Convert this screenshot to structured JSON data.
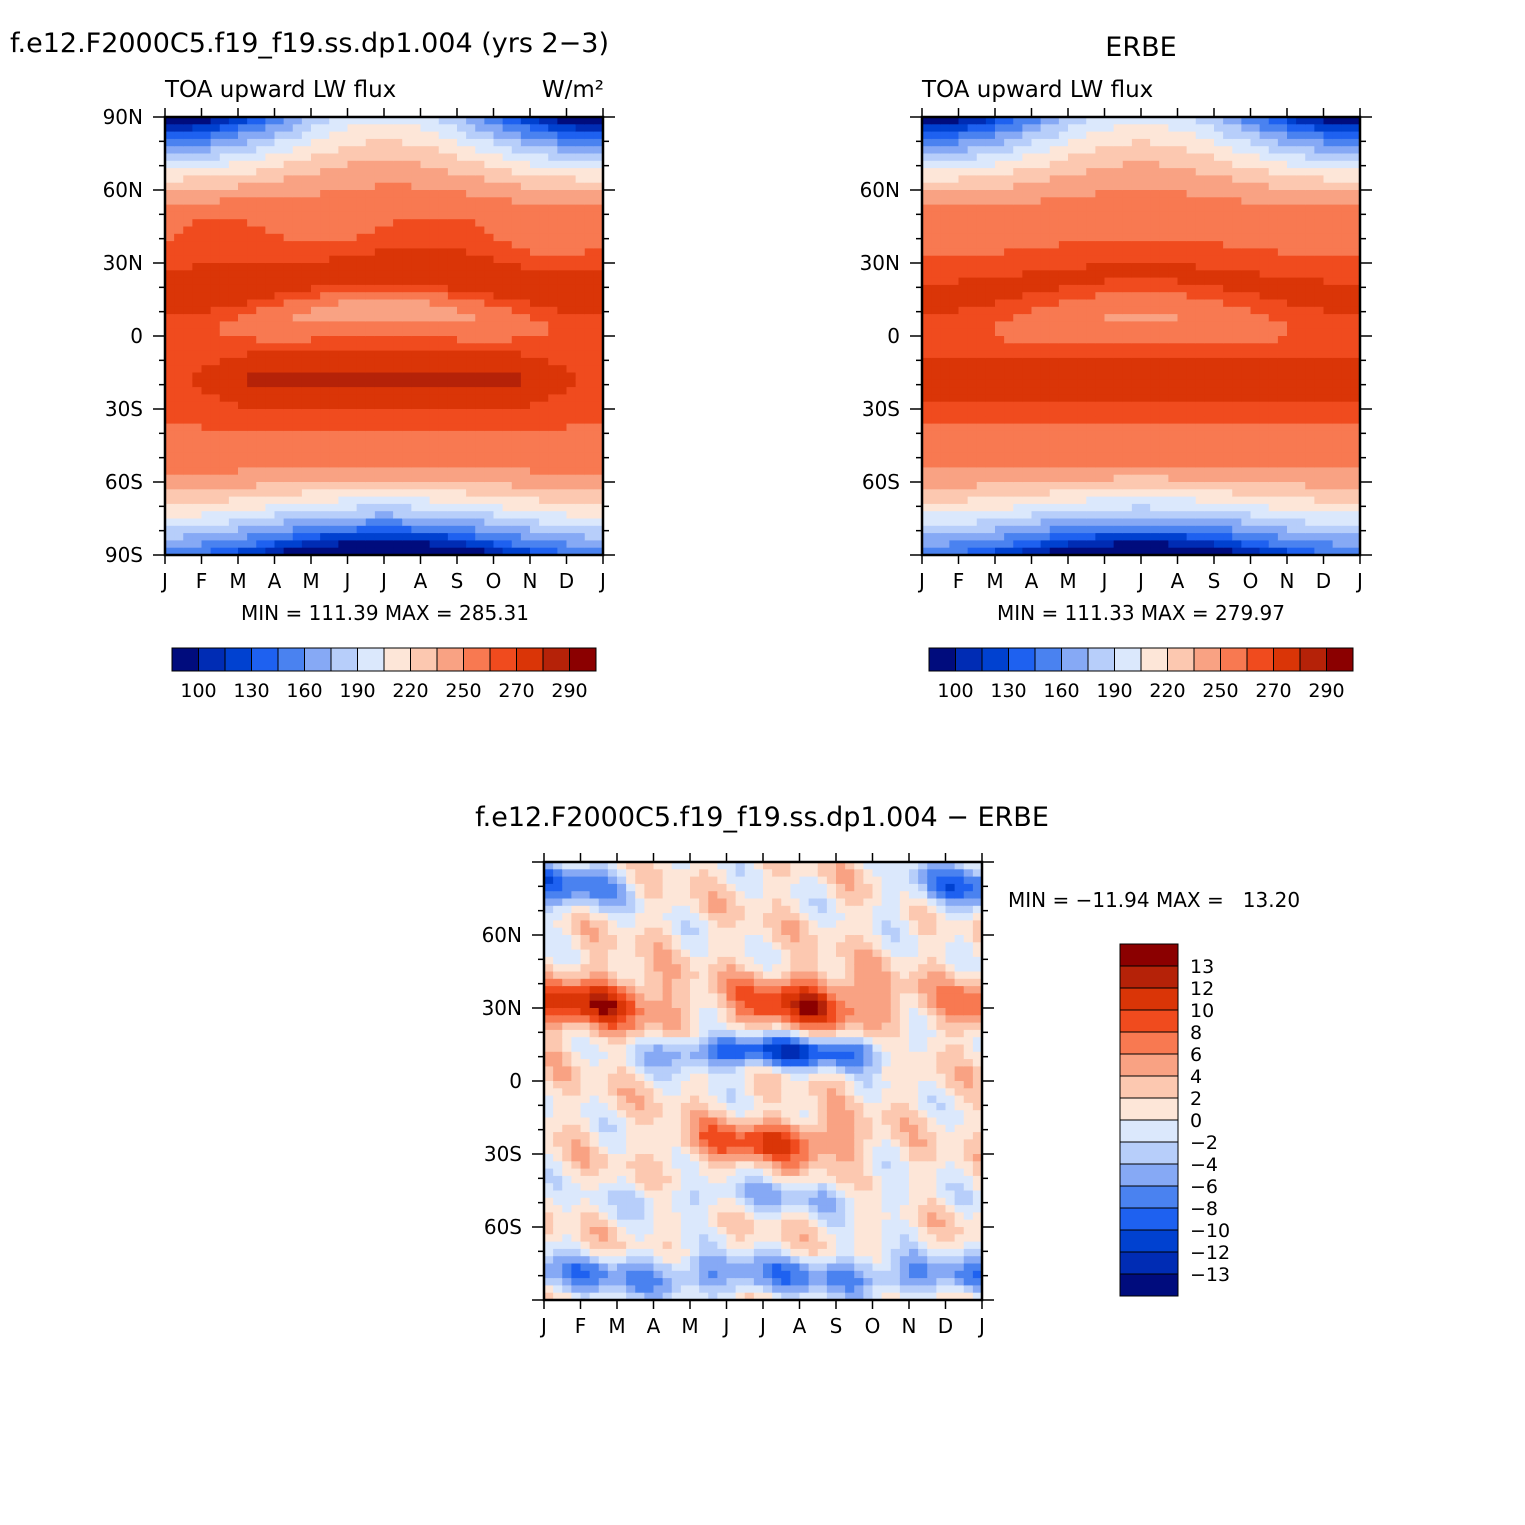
{
  "chart_data": [
    {
      "type": "heatmap",
      "panel": "model",
      "title": "f.e12.F2000C5.f19_f19.ss.dp1.004 (yrs 2−3)",
      "left_string": "TOA upward LW flux",
      "right_string": "W/m²",
      "xlabels": [
        "J",
        "F",
        "M",
        "A",
        "M",
        "J",
        "J",
        "A",
        "S",
        "O",
        "N",
        "D",
        "J"
      ],
      "ylabels": [
        "90N",
        "60N",
        "30N",
        "0",
        "30S",
        "60S",
        "90S"
      ],
      "ylim": [
        -90,
        90
      ],
      "min_max": "MIN = 111.39 MAX = 285.31",
      "min": 111.39,
      "max": 285.31,
      "colorbar": {
        "levels": [
          "100",
          "130",
          "160",
          "190",
          "220",
          "250",
          "270",
          "290"
        ],
        "colors": [
          "#000c7d",
          "#002cb4",
          "#0041d0",
          "#1e61f0",
          "#4a82f0",
          "#86a9f5",
          "#b7cefa",
          "#dbe8fc",
          "#fde6d8",
          "#fcc8b0",
          "#f9a283",
          "#f87951",
          "#f04b1e",
          "#da3507",
          "#b52208",
          "#8b0000"
        ]
      }
    },
    {
      "type": "heatmap",
      "panel": "obs",
      "title": "ERBE",
      "left_string": "TOA upward LW flux",
      "xlabels": [
        "J",
        "F",
        "M",
        "A",
        "M",
        "J",
        "J",
        "A",
        "S",
        "O",
        "N",
        "D",
        "J"
      ],
      "ylabels": [
        "60N",
        "30N",
        "0",
        "30S",
        "60S"
      ],
      "ylim": [
        -90,
        90
      ],
      "min_max": "MIN = 111.33 MAX = 279.97",
      "min": 111.33,
      "max": 279.97,
      "colorbar": {
        "levels": [
          "100",
          "130",
          "160",
          "190",
          "220",
          "250",
          "270",
          "290"
        ],
        "colors": [
          "#000c7d",
          "#002cb4",
          "#0041d0",
          "#1e61f0",
          "#4a82f0",
          "#86a9f5",
          "#b7cefa",
          "#dbe8fc",
          "#fde6d8",
          "#fcc8b0",
          "#f9a283",
          "#f87951",
          "#f04b1e",
          "#da3507",
          "#b52208",
          "#8b0000"
        ]
      }
    },
    {
      "type": "heatmap",
      "panel": "diff",
      "title": "f.e12.F2000C5.f19_f19.ss.dp1.004 − ERBE",
      "xlabels": [
        "J",
        "F",
        "M",
        "A",
        "M",
        "J",
        "J",
        "A",
        "S",
        "O",
        "N",
        "D",
        "J"
      ],
      "ylabels": [
        "60N",
        "30N",
        "0",
        "30S",
        "60S"
      ],
      "ylim": [
        -90,
        90
      ],
      "min_max": "MIN = −11.94 MAX =   13.20",
      "min": -11.94,
      "max": 13.2,
      "colorbar": {
        "levels": [
          "13",
          "12",
          "10",
          "8",
          "6",
          "4",
          "2",
          "0",
          "−2",
          "−4",
          "−6",
          "−8",
          "−10",
          "−12",
          "−13"
        ],
        "colors": [
          "#8b0000",
          "#b52208",
          "#da3507",
          "#f04b1e",
          "#f87951",
          "#f9a283",
          "#fcc8b0",
          "#fde6d8",
          "#dbe8fc",
          "#b7cefa",
          "#86a9f5",
          "#4a82f0",
          "#1e61f0",
          "#0041d0",
          "#002cb4",
          "#000c7d"
        ]
      }
    }
  ]
}
